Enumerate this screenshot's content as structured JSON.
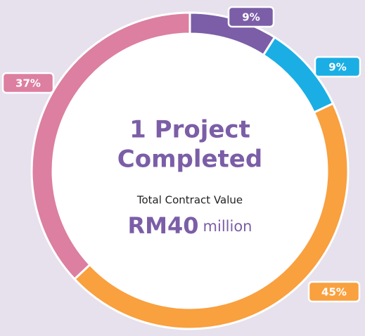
{
  "chart_data": {
    "type": "donut",
    "title": [
      "1 Project",
      "Completed"
    ],
    "subtitle": "Total Contract Value",
    "total_value": "RM40",
    "total_unit": "million",
    "values": [
      9,
      9,
      45,
      37
    ],
    "value_labels": [
      "9%",
      "9%",
      "45%",
      "37%"
    ],
    "colors": [
      "#7b5ea7",
      "#1aaee5",
      "#f9a03f",
      "#dc7fa0"
    ]
  }
}
